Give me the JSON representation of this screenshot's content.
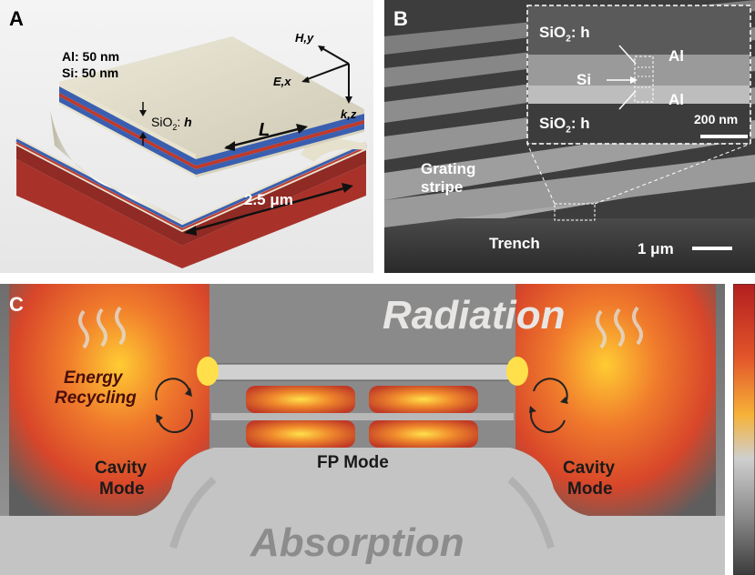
{
  "panel_a": {
    "letter": "A",
    "al_label": "Al: 50 nm",
    "si_label": "Si: 50 nm",
    "sio2_label": "SiO",
    "sio2_sub": "2",
    "sio2_suffix": ": ",
    "sio2_h": "h",
    "length_symbol": "L",
    "width_label": "2.5 μm",
    "axis_h": "H,y",
    "axis_e": "E,x",
    "axis_k": "k,z",
    "colors": {
      "al": "#3a5fb0",
      "si": "#c0392b",
      "substrate": "#a8322a",
      "top": "#e0dbc8"
    }
  },
  "panel_b": {
    "letter": "B",
    "inset_sio2_top": "SiO",
    "inset_sio2_top_sub": "2",
    "inset_sio2_top_h": ": h",
    "inset_si": "Si",
    "inset_sio2_bottom": "SiO",
    "inset_sio2_bottom_sub": "2",
    "inset_sio2_bottom_h": ": h",
    "inset_al_top": "Al",
    "inset_al_bottom": "Al",
    "inset_scale": "200 nm",
    "grating_line1": "Grating",
    "grating_line2": "stripe",
    "trench": "Trench",
    "scale": "1 μm"
  },
  "panel_c": {
    "letter": "C",
    "radiation": "Radiation",
    "energy_line1": "Energy",
    "energy_line2": "Recycling",
    "cavity_left_1": "Cavity",
    "cavity_left_2": "Mode",
    "cavity_right_1": "Cavity",
    "cavity_right_2": "Mode",
    "fp_mode": "FP Mode",
    "absorption": "Absorption",
    "colors": {
      "hot": "#ffd23a",
      "warm": "#e8502a",
      "cool": "#6a6a6a"
    }
  }
}
